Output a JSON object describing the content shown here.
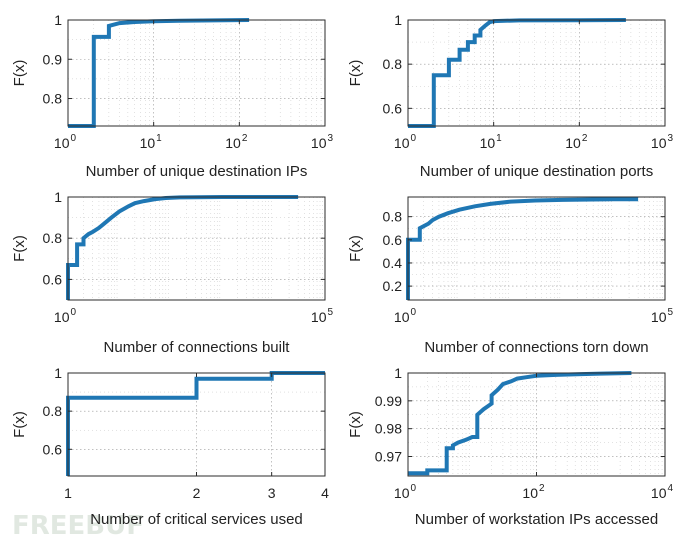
{
  "watermark": {
    "text": "FREEBUF"
  },
  "chart_data": [
    {
      "type": "line",
      "xlabel": "Number of unique destination IPs",
      "ylabel": "F(x)",
      "xscale": "log",
      "xlim": [
        1,
        1000
      ],
      "ylim": [
        0.73,
        1.0
      ],
      "xticks": [
        {
          "base": "10",
          "exp": "0",
          "value": 1
        },
        {
          "base": "10",
          "exp": "1",
          "value": 10
        },
        {
          "base": "10",
          "exp": "2",
          "value": 100
        },
        {
          "base": "10",
          "exp": "3",
          "value": 1000
        }
      ],
      "yticks": [
        {
          "label": "0.8",
          "value": 0.8
        },
        {
          "label": "0.9",
          "value": 0.9
        },
        {
          "label": "1",
          "value": 1.0
        }
      ],
      "grid": true,
      "step": true,
      "x": [
        1,
        2,
        2,
        3,
        3,
        4,
        6,
        10,
        20,
        50,
        130
      ],
      "y": [
        0.73,
        0.73,
        0.957,
        0.957,
        0.985,
        0.992,
        0.995,
        0.997,
        0.998,
        0.999,
        1.0
      ]
    },
    {
      "type": "line",
      "xlabel": "Number of unique destination ports",
      "ylabel": "F(x)",
      "xscale": "log",
      "xlim": [
        1,
        1000
      ],
      "ylim": [
        0.52,
        1.0
      ],
      "xticks": [
        {
          "base": "10",
          "exp": "0",
          "value": 1
        },
        {
          "base": "10",
          "exp": "1",
          "value": 10
        },
        {
          "base": "10",
          "exp": "2",
          "value": 100
        },
        {
          "base": "10",
          "exp": "3",
          "value": 1000
        }
      ],
      "yticks": [
        {
          "label": "0.6",
          "value": 0.6
        },
        {
          "label": "0.8",
          "value": 0.8
        },
        {
          "label": "1",
          "value": 1.0
        }
      ],
      "grid": true,
      "step": true,
      "x": [
        1,
        2,
        2,
        3,
        3,
        4,
        4,
        5,
        5,
        6,
        6,
        7,
        7,
        8,
        9,
        10,
        20,
        100,
        350
      ],
      "y": [
        0.52,
        0.52,
        0.75,
        0.75,
        0.82,
        0.82,
        0.865,
        0.865,
        0.9,
        0.9,
        0.93,
        0.93,
        0.955,
        0.975,
        0.99,
        0.995,
        0.998,
        0.999,
        1.0
      ]
    },
    {
      "type": "line",
      "xlabel": "Number of connections built",
      "ylabel": "F(x)",
      "xscale": "log",
      "xlim": [
        1,
        100000
      ],
      "ylim": [
        0.5,
        1.0
      ],
      "xticks": [
        {
          "base": "10",
          "exp": "0",
          "value": 1
        },
        {
          "base": "10",
          "exp": "5",
          "value": 100000
        }
      ],
      "yticks": [
        {
          "label": "0.6",
          "value": 0.6
        },
        {
          "label": "0.8",
          "value": 0.8
        },
        {
          "label": "1",
          "value": 1.0
        }
      ],
      "grid": true,
      "step": true,
      "x": [
        1,
        1,
        1.5,
        1.5,
        2,
        2,
        2.5,
        3,
        4,
        5,
        7,
        10,
        15,
        20,
        30,
        50,
        80,
        150,
        300,
        1000,
        10000,
        30000
      ],
      "y": [
        0.5,
        0.67,
        0.67,
        0.77,
        0.77,
        0.8,
        0.82,
        0.83,
        0.85,
        0.87,
        0.9,
        0.93,
        0.955,
        0.97,
        0.98,
        0.99,
        0.995,
        0.998,
        0.999,
        1.0,
        1.0,
        1.0
      ]
    },
    {
      "type": "line",
      "xlabel": "Number of connections torn down",
      "ylabel": "F(x)",
      "xscale": "log",
      "xlim": [
        1,
        100000
      ],
      "ylim": [
        0.08,
        0.97
      ],
      "xticks": [
        {
          "base": "10",
          "exp": "0",
          "value": 1
        },
        {
          "base": "10",
          "exp": "5",
          "value": 100000
        }
      ],
      "yticks": [
        {
          "label": "0.2",
          "value": 0.2
        },
        {
          "label": "0.4",
          "value": 0.4
        },
        {
          "label": "0.6",
          "value": 0.6
        },
        {
          "label": "0.8",
          "value": 0.8
        }
      ],
      "grid": true,
      "step": true,
      "x": [
        1,
        1,
        1.7,
        1.7,
        2.5,
        3,
        4,
        6,
        10,
        20,
        40,
        100,
        300,
        1000,
        10000,
        30000
      ],
      "y": [
        0.08,
        0.6,
        0.6,
        0.7,
        0.74,
        0.77,
        0.8,
        0.83,
        0.86,
        0.89,
        0.91,
        0.93,
        0.94,
        0.945,
        0.95,
        0.95
      ]
    },
    {
      "type": "line",
      "xlabel": "Number of critical services used",
      "ylabel": "F(x)",
      "xscale": "log",
      "xlim": [
        1,
        4
      ],
      "ylim": [
        0.46,
        1.0
      ],
      "xticks": [
        {
          "label": "1",
          "value": 1
        },
        {
          "label": "2",
          "value": 2
        },
        {
          "label": "3",
          "value": 3
        },
        {
          "label": "4",
          "value": 4
        }
      ],
      "yticks": [
        {
          "label": "0.6",
          "value": 0.6
        },
        {
          "label": "0.8",
          "value": 0.8
        },
        {
          "label": "1",
          "value": 1.0
        }
      ],
      "grid": true,
      "step": true,
      "x": [
        1,
        1,
        2,
        2,
        3,
        3,
        4
      ],
      "y": [
        0.46,
        0.87,
        0.87,
        0.97,
        0.97,
        1.0,
        1.0
      ]
    },
    {
      "type": "line",
      "xlabel": "Number of workstation IPs accessed",
      "ylabel": "F(x)",
      "xscale": "log",
      "xlim": [
        1,
        10000
      ],
      "ylim": [
        0.963,
        1.0
      ],
      "xticks": [
        {
          "base": "10",
          "exp": "0",
          "value": 1
        },
        {
          "base": "10",
          "exp": "2",
          "value": 100
        },
        {
          "base": "10",
          "exp": "4",
          "value": 10000
        }
      ],
      "yticks": [
        {
          "label": "0.97",
          "value": 0.97
        },
        {
          "label": "0.98",
          "value": 0.98
        },
        {
          "label": "0.99",
          "value": 0.99
        },
        {
          "label": "1",
          "value": 1.0
        }
      ],
      "grid": true,
      "step": true,
      "x": [
        1,
        2,
        2,
        4,
        4,
        5,
        5,
        6,
        8,
        10,
        12,
        12,
        15,
        20,
        20,
        25,
        30,
        40,
        50,
        70,
        100,
        200,
        500,
        1000,
        3000
      ],
      "y": [
        0.964,
        0.964,
        0.965,
        0.965,
        0.973,
        0.973,
        0.974,
        0.975,
        0.976,
        0.977,
        0.977,
        0.985,
        0.987,
        0.989,
        0.992,
        0.994,
        0.996,
        0.997,
        0.998,
        0.9985,
        0.999,
        0.9993,
        0.9996,
        0.9998,
        1.0
      ]
    }
  ]
}
